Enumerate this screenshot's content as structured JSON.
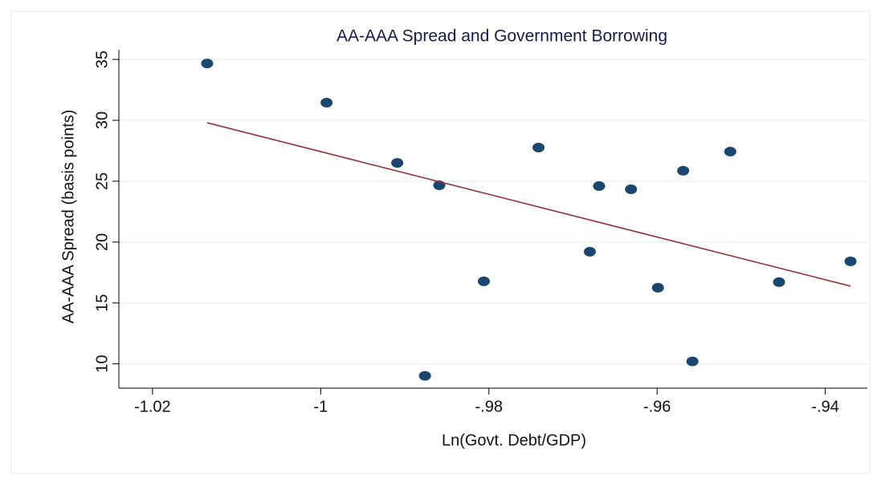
{
  "chart_data": {
    "type": "scatter",
    "title": "AA-AAA Spread and Government Borrowing",
    "x_label": "Ln(Govt. Debt/GDP)",
    "y_label": "AA-AAA  Spread  (basis points)",
    "x": [
      -1.0135,
      -0.9993,
      -0.9909,
      -0.9859,
      -0.9806,
      -0.9876,
      -0.9741,
      -0.968,
      -0.9669,
      -0.9631,
      -0.9599,
      -0.9569,
      -0.9558,
      -0.9513,
      -0.9455,
      -0.937
    ],
    "values": [
      34.67,
      31.45,
      26.5,
      24.67,
      16.78,
      9.01,
      27.76,
      19.21,
      24.6,
      24.34,
      16.25,
      25.86,
      10.2,
      27.43,
      16.71,
      18.42
    ],
    "color": "#1a476f",
    "fit": {
      "x": [
        -1.0135,
        -0.937
      ],
      "values": [
        29.8,
        16.38
      ],
      "color": "#90353b"
    },
    "xlim": [
      -1.024,
      -0.935
    ],
    "ylim": [
      8,
      35.8
    ],
    "xticks": [
      -1.02,
      -1,
      {
        "value": -0.98,
        "label": "-.98"
      },
      {
        "value": -0.96,
        "label": "-.96"
      },
      {
        "value": -0.94,
        "label": "-.94"
      }
    ],
    "yticks": [
      10,
      15,
      20,
      25,
      30,
      35
    ],
    "grid": true
  }
}
